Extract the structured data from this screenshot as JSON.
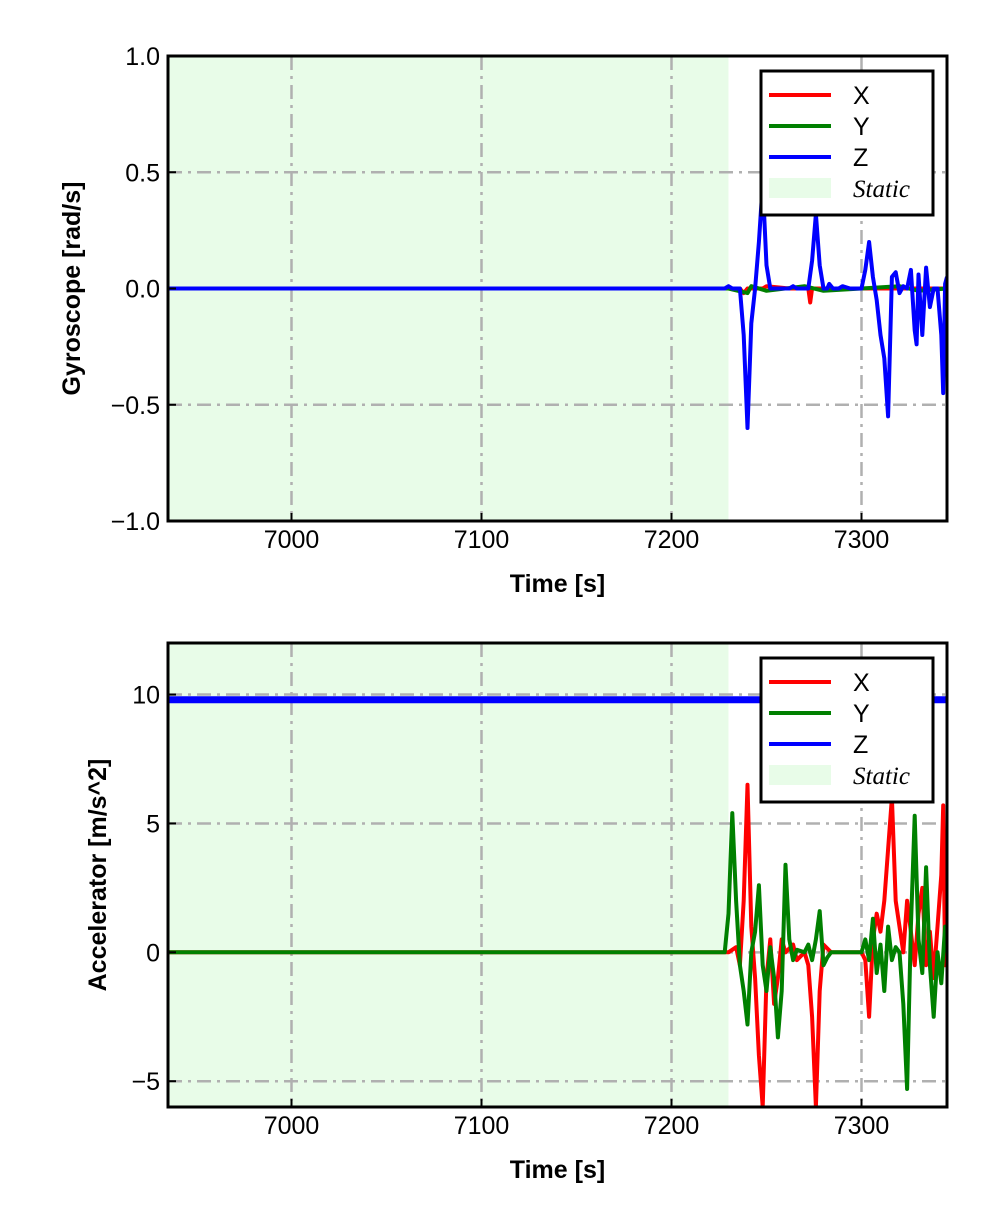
{
  "chart_data": [
    {
      "type": "line",
      "title": "",
      "xlabel": "Time [s]",
      "ylabel": "Gyroscope [rad/s]",
      "xlim": [
        6935,
        7345
      ],
      "ylim": [
        -1.0,
        1.0
      ],
      "xticks": [
        7000,
        7100,
        7200,
        7300
      ],
      "yticks": [
        -1.0,
        -0.5,
        0.0,
        0.5,
        1.0
      ],
      "ytick_labels": [
        "−1.0",
        "−0.5",
        "0.0",
        "0.5",
        "1.0"
      ],
      "xtick_labels": [
        "7000",
        "7100",
        "7200",
        "7300"
      ],
      "grid": true,
      "legend_position": "top-right",
      "static_region": {
        "label": "Static",
        "x": [
          6935,
          7230
        ],
        "color": "#e8fce8"
      },
      "series": [
        {
          "name": "X",
          "color": "#ff0000",
          "points": [
            [
              6935,
              0.0
            ],
            [
              7230,
              0.0
            ],
            [
              7236,
              0.0
            ],
            [
              7238,
              -0.02
            ],
            [
              7240,
              0.0
            ],
            [
              7248,
              0.0
            ],
            [
              7250,
              0.01
            ],
            [
              7262,
              0.0
            ],
            [
              7272,
              0.0
            ],
            [
              7273,
              -0.06
            ],
            [
              7274,
              0.0
            ],
            [
              7300,
              0.0
            ],
            [
              7345,
              0.0
            ]
          ]
        },
        {
          "name": "Y",
          "color": "#008000",
          "points": [
            [
              6935,
              0.0
            ],
            [
              7230,
              0.0
            ],
            [
              7240,
              -0.02
            ],
            [
              7242,
              0.01
            ],
            [
              7250,
              -0.01
            ],
            [
              7270,
              0.01
            ],
            [
              7280,
              -0.01
            ],
            [
              7300,
              0.0
            ],
            [
              7320,
              0.01
            ],
            [
              7330,
              -0.01
            ],
            [
              7345,
              0.0
            ]
          ]
        },
        {
          "name": "Z",
          "color": "#0000ff",
          "points": [
            [
              6935,
              0.0
            ],
            [
              7228,
              0.0
            ],
            [
              7230,
              0.01
            ],
            [
              7232,
              0.0
            ],
            [
              7236,
              0.0
            ],
            [
              7238,
              -0.2
            ],
            [
              7240,
              -0.6
            ],
            [
              7242,
              -0.15
            ],
            [
              7244,
              0.0
            ],
            [
              7246,
              0.2
            ],
            [
              7248,
              0.45
            ],
            [
              7250,
              0.1
            ],
            [
              7252,
              0.0
            ],
            [
              7262,
              0.0
            ],
            [
              7264,
              0.01
            ],
            [
              7266,
              0.0
            ],
            [
              7272,
              0.0
            ],
            [
              7274,
              0.12
            ],
            [
              7276,
              0.32
            ],
            [
              7278,
              0.1
            ],
            [
              7280,
              0.0
            ],
            [
              7282,
              0.0
            ],
            [
              7283,
              0.02
            ],
            [
              7285,
              0.0
            ],
            [
              7288,
              0.0
            ],
            [
              7290,
              0.01
            ],
            [
              7294,
              0.0
            ],
            [
              7300,
              0.0
            ],
            [
              7302,
              0.08
            ],
            [
              7304,
              0.2
            ],
            [
              7306,
              0.05
            ],
            [
              7308,
              -0.05
            ],
            [
              7310,
              -0.2
            ],
            [
              7312,
              -0.3
            ],
            [
              7314,
              -0.55
            ],
            [
              7316,
              0.05
            ],
            [
              7318,
              0.07
            ],
            [
              7320,
              -0.02
            ],
            [
              7322,
              0.01
            ],
            [
              7324,
              0.0
            ],
            [
              7326,
              0.08
            ],
            [
              7328,
              -0.18
            ],
            [
              7329,
              -0.24
            ],
            [
              7330,
              0.06
            ],
            [
              7332,
              -0.2
            ],
            [
              7334,
              0.09
            ],
            [
              7336,
              -0.08
            ],
            [
              7338,
              0.0
            ],
            [
              7340,
              0.0
            ],
            [
              7342,
              -0.2
            ],
            [
              7343,
              -0.45
            ],
            [
              7344,
              0.02
            ],
            [
              7345,
              0.05
            ]
          ]
        }
      ]
    },
    {
      "type": "line",
      "title": "",
      "xlabel": "Time [s]",
      "ylabel": "Accelerator [m/s^2]",
      "xlim": [
        6935,
        7345
      ],
      "ylim": [
        -6,
        12
      ],
      "xticks": [
        7000,
        7100,
        7200,
        7300
      ],
      "yticks": [
        -5,
        0,
        5,
        10
      ],
      "ytick_labels": [
        "−5",
        "0",
        "5",
        "10"
      ],
      "xtick_labels": [
        "7000",
        "7100",
        "7200",
        "7300"
      ],
      "grid": true,
      "legend_position": "top-right",
      "static_region": {
        "label": "Static",
        "x": [
          6935,
          7230
        ],
        "color": "#e8fce8"
      },
      "series": [
        {
          "name": "X",
          "color": "#ff0000",
          "points": [
            [
              6935,
              0.0
            ],
            [
              7230,
              0.0
            ],
            [
              7234,
              0.2
            ],
            [
              7236,
              -0.5
            ],
            [
              7238,
              2.0
            ],
            [
              7240,
              6.5
            ],
            [
              7242,
              1.0
            ],
            [
              7244,
              -1.0
            ],
            [
              7246,
              -4.0
            ],
            [
              7248,
              -6.0
            ],
            [
              7250,
              -1.0
            ],
            [
              7252,
              0.5
            ],
            [
              7254,
              -2.0
            ],
            [
              7256,
              -1.0
            ],
            [
              7258,
              0.5
            ],
            [
              7260,
              0.0
            ],
            [
              7264,
              0.3
            ],
            [
              7266,
              -0.3
            ],
            [
              7270,
              0.0
            ],
            [
              7272,
              -0.5
            ],
            [
              7274,
              -2.5
            ],
            [
              7276,
              -6.0
            ],
            [
              7278,
              -1.5
            ],
            [
              7280,
              0.3
            ],
            [
              7284,
              0.0
            ],
            [
              7300,
              0.0
            ],
            [
              7302,
              -0.3
            ],
            [
              7304,
              -2.5
            ],
            [
              7306,
              0.5
            ],
            [
              7308,
              1.5
            ],
            [
              7310,
              0.8
            ],
            [
              7312,
              2.0
            ],
            [
              7314,
              4.0
            ],
            [
              7316,
              6.0
            ],
            [
              7318,
              2.0
            ],
            [
              7320,
              1.0
            ],
            [
              7322,
              0.0
            ],
            [
              7324,
              2.0
            ],
            [
              7326,
              0.8
            ],
            [
              7328,
              -0.5
            ],
            [
              7330,
              1.5
            ],
            [
              7332,
              2.5
            ],
            [
              7334,
              -0.5
            ],
            [
              7336,
              0.8
            ],
            [
              7338,
              -1.0
            ],
            [
              7340,
              1.0
            ],
            [
              7342,
              3.0
            ],
            [
              7343,
              5.7
            ],
            [
              7344,
              -0.5
            ],
            [
              7345,
              0.3
            ]
          ]
        },
        {
          "name": "Y",
          "color": "#008000",
          "points": [
            [
              6935,
              0.0
            ],
            [
              7228,
              0.0
            ],
            [
              7230,
              1.5
            ],
            [
              7232,
              5.4
            ],
            [
              7234,
              2.0
            ],
            [
              7236,
              -0.5
            ],
            [
              7238,
              -1.5
            ],
            [
              7240,
              -2.8
            ],
            [
              7242,
              0.0
            ],
            [
              7244,
              0.8
            ],
            [
              7246,
              2.6
            ],
            [
              7248,
              -0.5
            ],
            [
              7250,
              -1.5
            ],
            [
              7252,
              0.2
            ],
            [
              7254,
              -1.0
            ],
            [
              7256,
              -3.3
            ],
            [
              7258,
              -1.5
            ],
            [
              7260,
              3.4
            ],
            [
              7262,
              0.5
            ],
            [
              7264,
              -0.3
            ],
            [
              7266,
              0.1
            ],
            [
              7270,
              0.0
            ],
            [
              7272,
              0.3
            ],
            [
              7274,
              -0.3
            ],
            [
              7276,
              0.5
            ],
            [
              7278,
              1.6
            ],
            [
              7280,
              -0.5
            ],
            [
              7282,
              -0.2
            ],
            [
              7284,
              0.0
            ],
            [
              7300,
              0.0
            ],
            [
              7302,
              0.5
            ],
            [
              7304,
              -0.3
            ],
            [
              7306,
              1.3
            ],
            [
              7308,
              -0.8
            ],
            [
              7310,
              0.3
            ],
            [
              7312,
              -1.5
            ],
            [
              7314,
              1.0
            ],
            [
              7316,
              -0.3
            ],
            [
              7318,
              0.2
            ],
            [
              7320,
              0.0
            ],
            [
              7322,
              -2.0
            ],
            [
              7324,
              -5.3
            ],
            [
              7326,
              1.0
            ],
            [
              7328,
              5.3
            ],
            [
              7330,
              0.5
            ],
            [
              7332,
              -0.8
            ],
            [
              7334,
              3.3
            ],
            [
              7336,
              -0.5
            ],
            [
              7338,
              -2.5
            ],
            [
              7340,
              0.0
            ],
            [
              7342,
              -1.2
            ],
            [
              7344,
              1.0
            ],
            [
              7345,
              0.0
            ]
          ]
        },
        {
          "name": "Z",
          "color": "#0000ff",
          "points": [
            [
              6935,
              9.8
            ],
            [
              7345,
              9.8
            ]
          ]
        }
      ]
    }
  ]
}
